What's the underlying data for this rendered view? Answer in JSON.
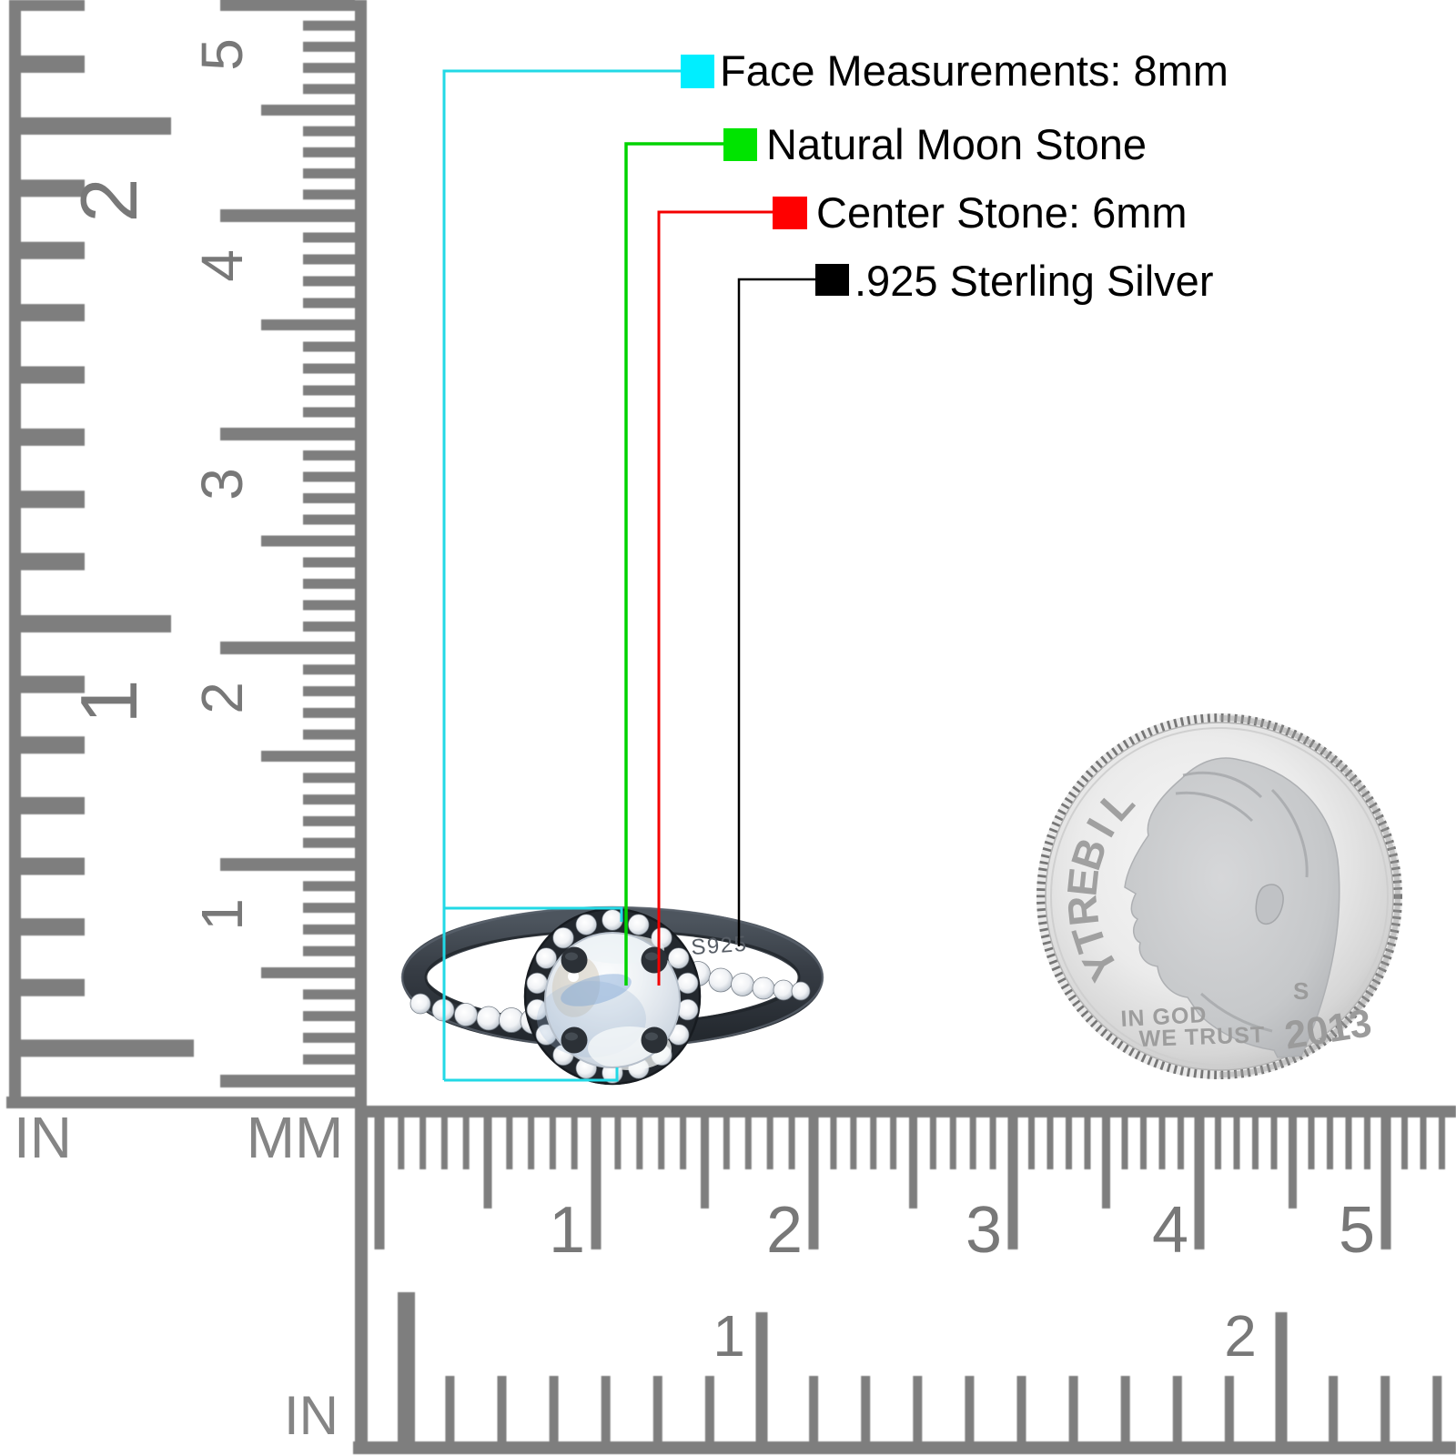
{
  "callouts": [
    {
      "id": "face",
      "label": "Face Measurements: 8mm",
      "color": "#00EEFF",
      "line_color": "#22D9E6"
    },
    {
      "id": "moonstone",
      "label": "Natural Moon Stone",
      "color": "#00E400",
      "line_color": "#00D300"
    },
    {
      "id": "center",
      "label": "Center Stone: 6mm",
      "color": "#FF0000",
      "line_color": "#F40000"
    },
    {
      "id": "silver",
      "label": ".925 Sterling Silver",
      "color": "#000000",
      "line_color": "#000000"
    }
  ],
  "ring": {
    "engraving": "S925"
  },
  "coin": {
    "legend": "LIBERTY",
    "motto_line1": "IN GOD",
    "motto_line2": "WE TRUST",
    "year": "2013",
    "mint_mark": "S"
  },
  "rulers": {
    "left": {
      "inch_unit": "IN",
      "mm_unit": "MM",
      "inch_labels": [
        "2",
        "1"
      ],
      "cm_labels": [
        "5",
        "4",
        "3",
        "2",
        "1"
      ]
    },
    "bottom": {
      "inch_unit": "IN",
      "cm_labels": [
        "1",
        "2",
        "3",
        "4",
        "5"
      ],
      "inch_labels": [
        "1",
        "2"
      ]
    }
  },
  "colors": {
    "ruler": "#7e7e7e",
    "ruler_digits": "#787878",
    "coin_text": "#a0a0a0"
  }
}
